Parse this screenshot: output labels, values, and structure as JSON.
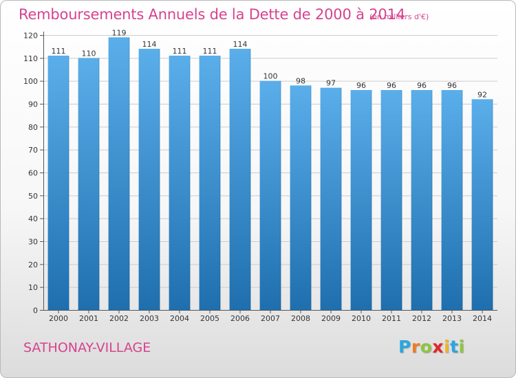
{
  "header": {
    "title": "Remboursements Annuels de la Dette de 2000 à 2014",
    "subtitle": "(en milliers d'€)"
  },
  "footer": {
    "commune": "SATHONAY-VILLAGE",
    "logo_letters": [
      "P",
      "r",
      "o",
      "x",
      "i",
      "t",
      "i"
    ],
    "logo_colors": [
      "#2aa6e0",
      "#f07b22",
      "#8dc63f",
      "#e2262a",
      "#f0b429",
      "#2aa6e0",
      "#8dc63f"
    ]
  },
  "colors": {
    "bar_top": "#5aaeea",
    "bar_bottom": "#1f6fae",
    "grid": "#cccccc",
    "title": "#d6438f"
  },
  "chart_data": {
    "type": "bar",
    "title": "Remboursements Annuels de la Dette de 2000 à 2014",
    "subtitle": "(en milliers d'€)",
    "xlabel": "",
    "ylabel": "",
    "categories": [
      "2000",
      "2001",
      "2002",
      "2003",
      "2004",
      "2005",
      "2006",
      "2007",
      "2008",
      "2009",
      "2010",
      "2011",
      "2012",
      "2013",
      "2014"
    ],
    "values": [
      111,
      110,
      119,
      114,
      111,
      111,
      114,
      100,
      98,
      97,
      96,
      96,
      96,
      96,
      92
    ],
    "ylim": [
      0,
      120
    ],
    "yticks": [
      0,
      10,
      20,
      30,
      40,
      50,
      60,
      70,
      80,
      90,
      100,
      110,
      120
    ],
    "grid": true,
    "legend": "none"
  }
}
